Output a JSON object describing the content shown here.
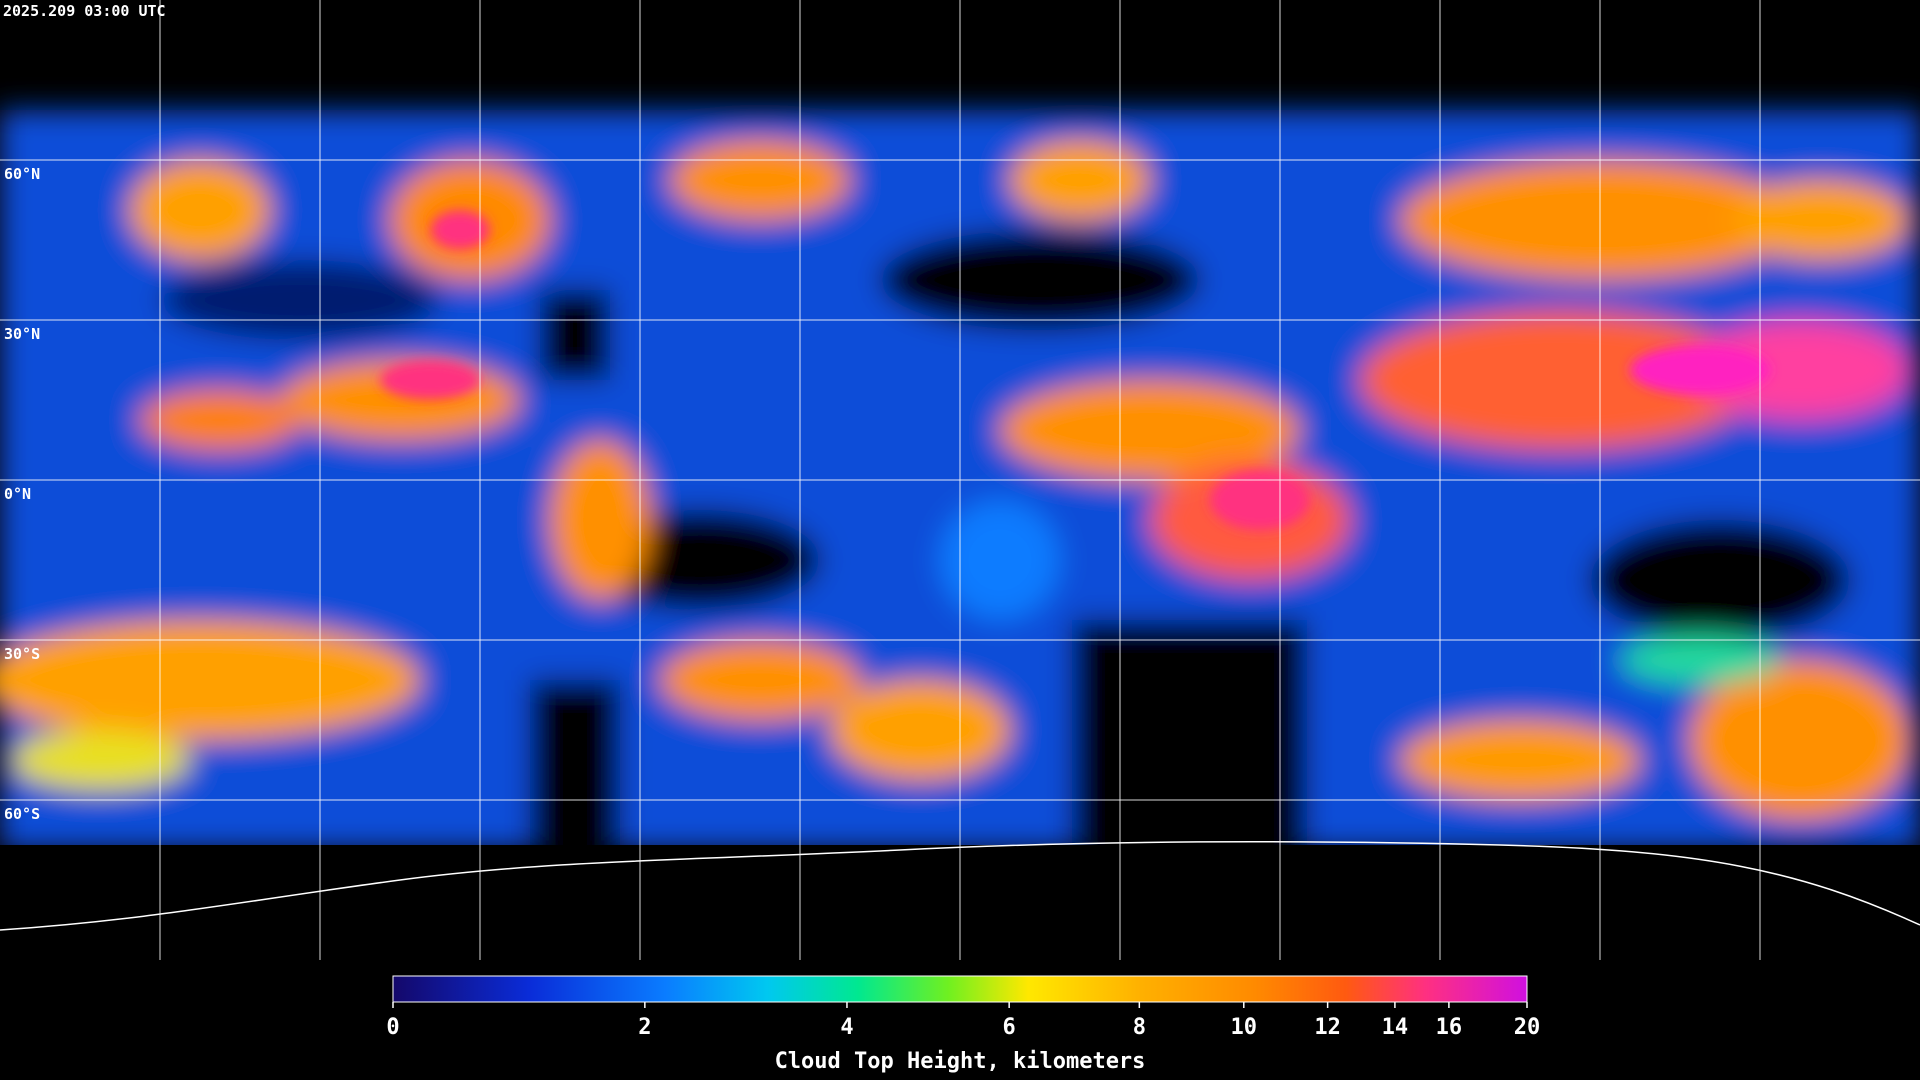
{
  "map": {
    "title": "2025.209 03:00 UTC",
    "lat_ticks": [
      {
        "value": 60,
        "label": "60°N"
      },
      {
        "value": 30,
        "label": "30°N"
      },
      {
        "value": 0,
        "label": "0°N"
      },
      {
        "value": -30,
        "label": "30°S"
      },
      {
        "value": -60,
        "label": "60°S"
      }
    ],
    "colorbar": {
      "label": "Cloud Top Height, kilometers",
      "lim": [
        0,
        20
      ],
      "ticks": [
        0,
        2,
        4,
        6,
        8,
        10,
        12,
        14,
        16,
        20
      ]
    }
  }
}
